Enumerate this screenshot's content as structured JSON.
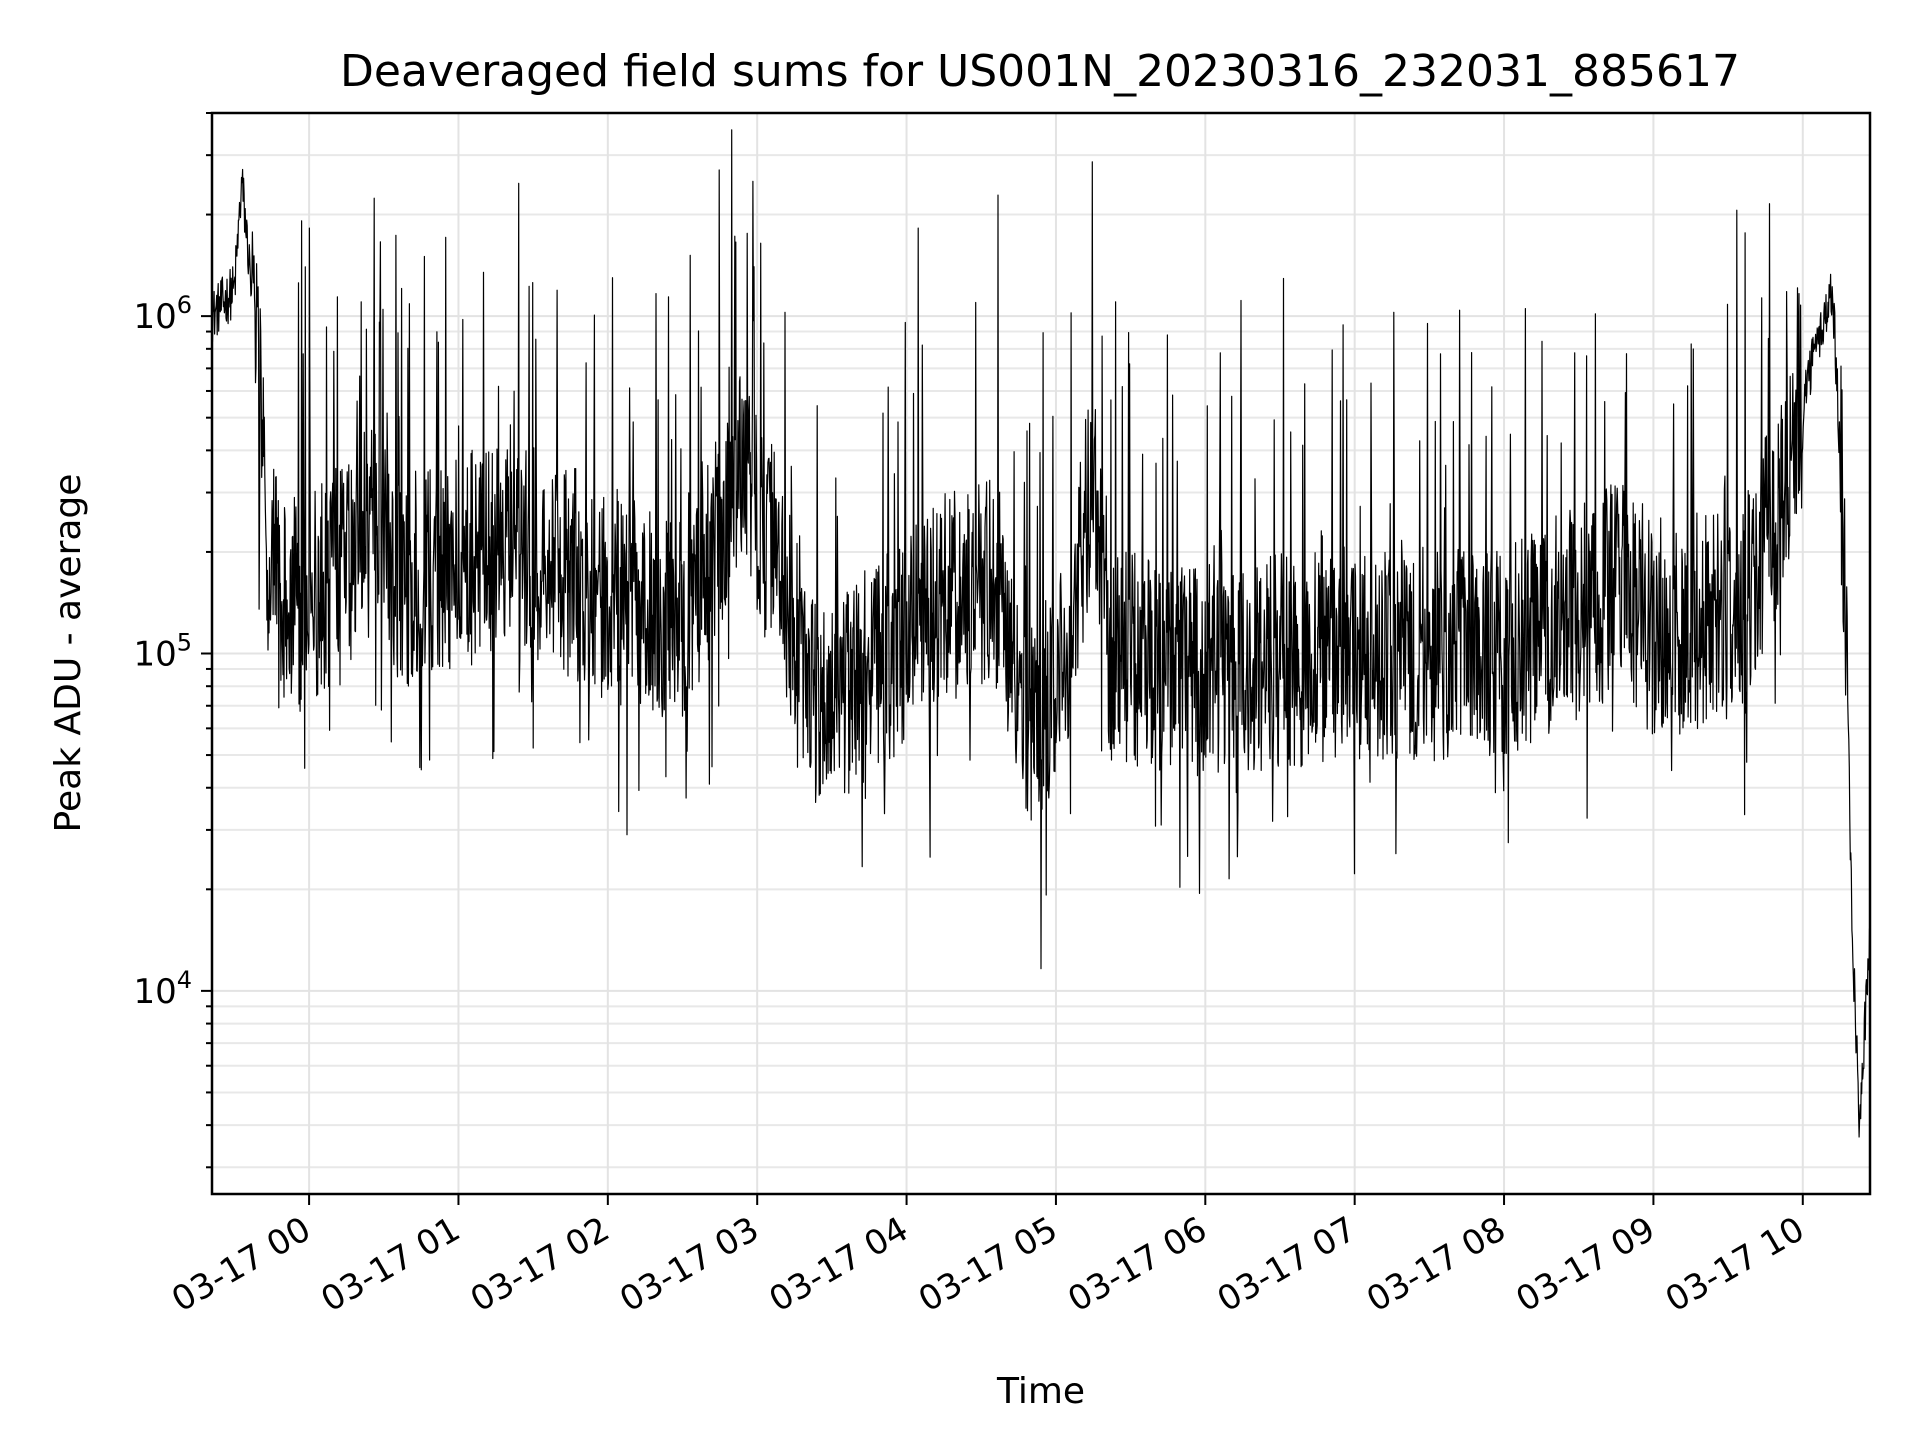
{
  "chart_data": {
    "type": "line",
    "title": "Deaveraged field sums for US001N_20230316_232031_885617",
    "xlabel": "Time",
    "ylabel": "Peak ADU - average",
    "yscale": "log",
    "ylim": [
      2500,
      4000000
    ],
    "xlim_hours": [
      -0.65,
      10.45
    ],
    "grid": true,
    "series_color": "#000000",
    "x_ticks": [
      {
        "label": "03-17 00",
        "hour": 0
      },
      {
        "label": "03-17 01",
        "hour": 1
      },
      {
        "label": "03-17 02",
        "hour": 2
      },
      {
        "label": "03-17 03",
        "hour": 3
      },
      {
        "label": "03-17 04",
        "hour": 4
      },
      {
        "label": "03-17 05",
        "hour": 5
      },
      {
        "label": "03-17 06",
        "hour": 6
      },
      {
        "label": "03-17 07",
        "hour": 7
      },
      {
        "label": "03-17 08",
        "hour": 8
      },
      {
        "label": "03-17 09",
        "hour": 9
      },
      {
        "label": "03-17 10",
        "hour": 10
      }
    ],
    "y_ticks": [
      {
        "value": 10000,
        "base": "10",
        "exp": "4"
      },
      {
        "value": 100000,
        "base": "10",
        "exp": "5"
      },
      {
        "value": 1000000,
        "base": "10",
        "exp": "6"
      }
    ],
    "baseline_profile": [
      {
        "hour": -0.65,
        "value": 1000000
      },
      {
        "hour": -0.5,
        "value": 1200000
      },
      {
        "hour": -0.45,
        "value": 2500000
      },
      {
        "hour": -0.35,
        "value": 800000
      },
      {
        "hour": -0.3,
        "value": 300000
      },
      {
        "hour": -0.2,
        "value": 140000
      },
      {
        "hour": 0.0,
        "value": 140000
      },
      {
        "hour": 0.3,
        "value": 200000
      },
      {
        "hour": 0.45,
        "value": 250000
      },
      {
        "hour": 0.6,
        "value": 160000
      },
      {
        "hour": 1.0,
        "value": 190000
      },
      {
        "hour": 1.5,
        "value": 200000
      },
      {
        "hour": 2.0,
        "value": 150000
      },
      {
        "hour": 2.5,
        "value": 130000
      },
      {
        "hour": 2.9,
        "value": 350000
      },
      {
        "hour": 3.2,
        "value": 150000
      },
      {
        "hour": 3.4,
        "value": 70000
      },
      {
        "hour": 3.8,
        "value": 90000
      },
      {
        "hour": 4.2,
        "value": 140000
      },
      {
        "hour": 4.6,
        "value": 160000
      },
      {
        "hour": 4.85,
        "value": 55000
      },
      {
        "hour": 5.1,
        "value": 120000
      },
      {
        "hour": 5.25,
        "value": 350000
      },
      {
        "hour": 5.35,
        "value": 100000
      },
      {
        "hour": 6.0,
        "value": 90000
      },
      {
        "hour": 7.0,
        "value": 100000
      },
      {
        "hour": 8.0,
        "value": 100000
      },
      {
        "hour": 8.8,
        "value": 160000
      },
      {
        "hour": 9.0,
        "value": 120000
      },
      {
        "hour": 9.6,
        "value": 130000
      },
      {
        "hour": 9.9,
        "value": 350000
      },
      {
        "hour": 10.05,
        "value": 700000
      },
      {
        "hour": 10.2,
        "value": 1200000
      },
      {
        "hour": 10.28,
        "value": 200000
      },
      {
        "hour": 10.33,
        "value": 15000
      },
      {
        "hour": 10.38,
        "value": 4000
      },
      {
        "hour": 10.45,
        "value": 15000
      }
    ]
  }
}
